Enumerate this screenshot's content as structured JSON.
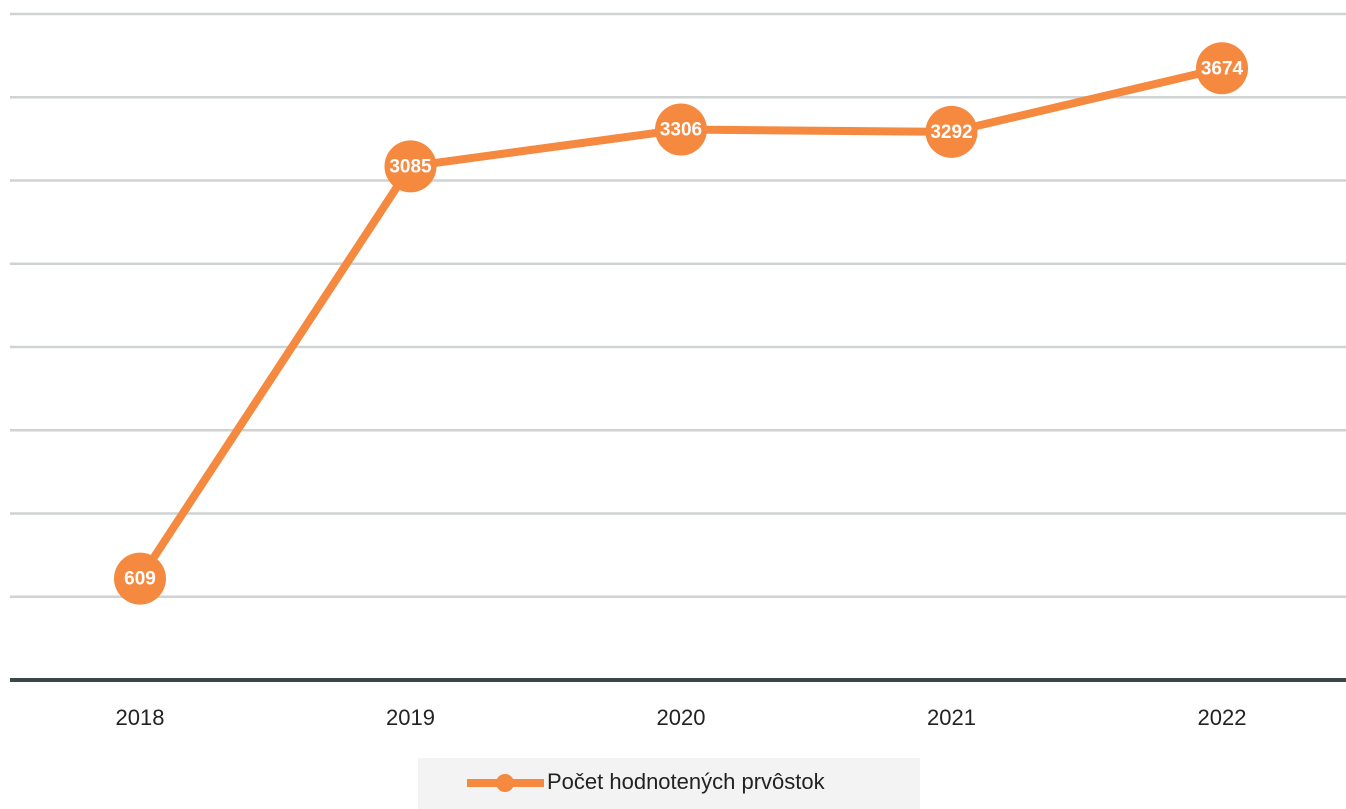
{
  "chart_data": {
    "type": "line",
    "categories": [
      "2018",
      "2019",
      "2020",
      "2021",
      "2022"
    ],
    "series": [
      {
        "name": "Počet hodnotených prvôstok",
        "color": "#f4893f",
        "values": [
          609,
          3085,
          3306,
          3292,
          3674
        ]
      }
    ],
    "ylim": [
      0,
      4000
    ],
    "yticks": [
      0,
      500,
      1000,
      1500,
      2000,
      2500,
      3000,
      3500,
      4000
    ],
    "grid": true,
    "legend": "bottom"
  }
}
